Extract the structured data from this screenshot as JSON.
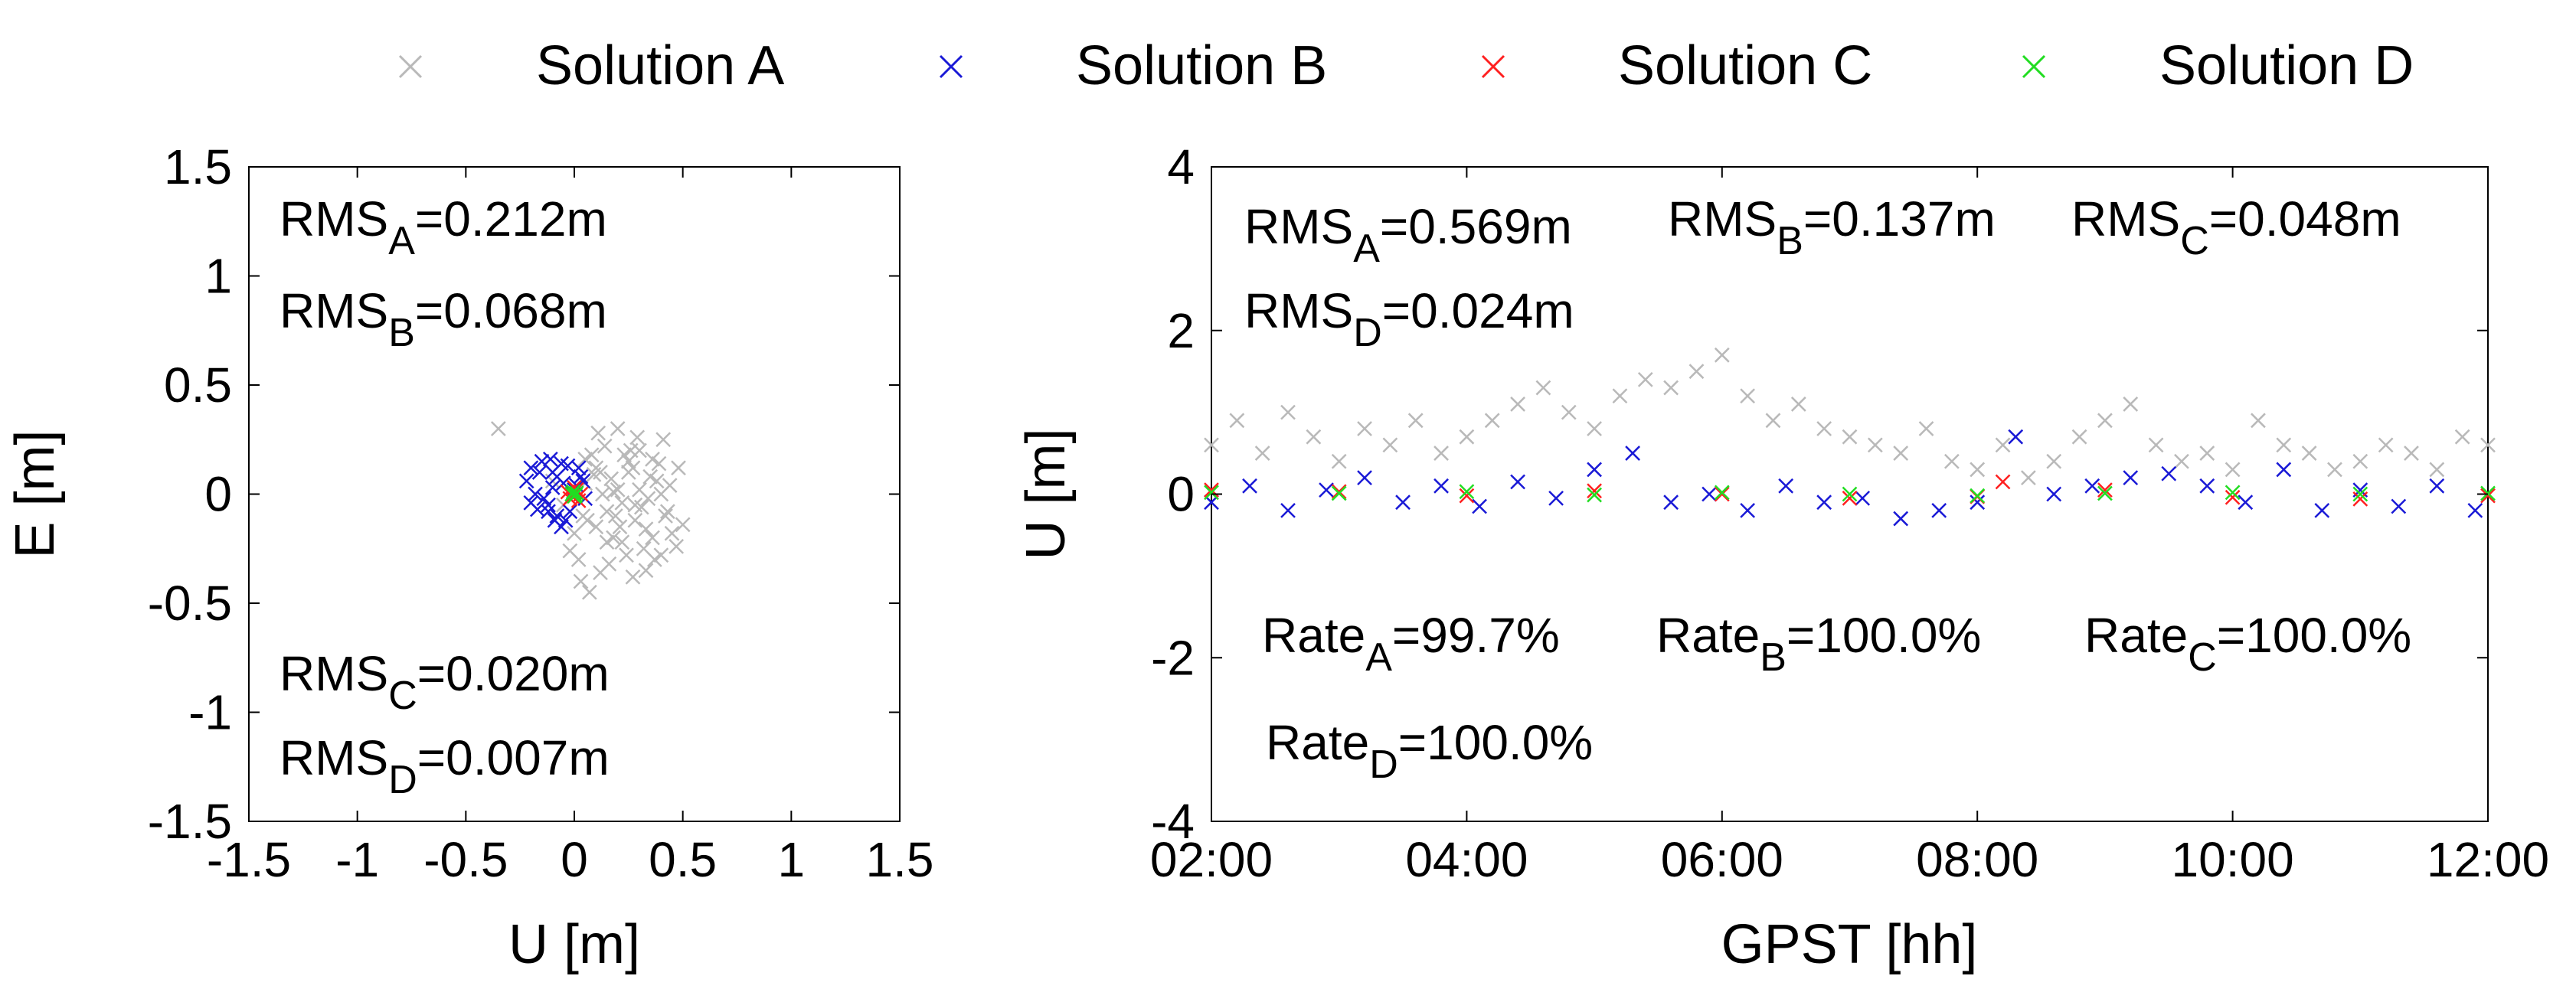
{
  "legend": {
    "items": [
      {
        "label": "Solution A",
        "color": "#b9b9b9",
        "marker": "x"
      },
      {
        "label": "Solution B",
        "color": "#1a1ad6",
        "marker": "x"
      },
      {
        "label": "Solution C",
        "color": "#ff2020",
        "marker": "x"
      },
      {
        "label": "Solution D",
        "color": "#22dd22",
        "marker": "x"
      }
    ]
  },
  "chart_data": [
    {
      "type": "scatter",
      "xlabel": "U [m]",
      "ylabel": "E [m]",
      "xlim": [
        -1.5,
        1.5
      ],
      "ylim": [
        -1.5,
        1.5
      ],
      "xticks": [
        -1.5,
        -1,
        -0.5,
        0,
        0.5,
        1,
        1.5
      ],
      "yticks": [
        -1.5,
        -1,
        -0.5,
        0,
        0.5,
        1,
        1.5
      ],
      "xtick_labels": [
        "-1.5",
        "-1",
        "-0.5",
        "0",
        "0.5",
        "1",
        "1.5"
      ],
      "ytick_labels": [
        "-1.5",
        "-1",
        "-0.5",
        "0",
        "0.5",
        "1",
        "1.5"
      ],
      "grid": false,
      "annotations": [
        {
          "base": "RMS",
          "sub": "A",
          "rest": "=0.212m"
        },
        {
          "base": "RMS",
          "sub": "B",
          "rest": "=0.068m"
        },
        {
          "base": "RMS",
          "sub": "C",
          "rest": "=0.020m"
        },
        {
          "base": "RMS",
          "sub": "D",
          "rest": "=0.007m"
        }
      ],
      "series": [
        {
          "name": "Solution A",
          "color": "#b9b9b9",
          "x": [
            0.05,
            0.12,
            0.2,
            0.28,
            0.35,
            0.42,
            0.48,
            0.1,
            0.18,
            0.25,
            0.32,
            0.4,
            0.02,
            0.08,
            0.15,
            0.22,
            0.3,
            0.38,
            0.45,
            0.06,
            0.14,
            0.24,
            0.33,
            0.41,
            -0.05,
            0.0,
            0.11,
            0.19,
            0.27,
            0.36,
            0.44,
            0.5,
            -0.1,
            -0.35,
            0.03,
            0.16,
            0.23,
            0.31,
            0.39,
            0.47,
            0.09,
            0.21,
            0.29,
            0.37,
            0.13,
            0.26,
            0.34,
            -0.02,
            0.07,
            0.17,
            0.43,
            0.12,
            0.2,
            0.28,
            0.36,
            0.04,
            0.3,
            0.22,
            0.15,
            0.33,
            0.25,
            0.1,
            0.4,
            0.18,
            0.05,
            0.27
          ],
          "y": [
            0.05,
            0.1,
            0.02,
            -0.05,
            0.08,
            -0.1,
            0.12,
            -0.15,
            -0.2,
            0.15,
            -0.25,
            0.0,
            -0.3,
            0.18,
            -0.08,
            -0.22,
            0.2,
            0.06,
            -0.18,
            -0.12,
            0.22,
            -0.28,
            -0.35,
            0.25,
            -0.05,
            -0.18,
            0.28,
            -0.1,
            0.12,
            -0.2,
            0.04,
            -0.14,
            0.06,
            0.3,
            -0.4,
            -0.32,
            0.18,
            -0.06,
            0.14,
            -0.24,
            0.09,
            -0.15,
            0.26,
            -0.3,
            0.0,
            0.2,
            -0.02,
            -0.26,
            -0.45,
            0.07,
            -0.08,
            -0.36,
            0.3,
            -0.12,
            0.16,
            -0.1,
            0.02,
            -0.04,
            -0.22,
            -0.16,
            0.1,
            0.12,
            -0.28,
            0.01,
            0.16,
            -0.38
          ]
        },
        {
          "name": "Solution B",
          "color": "#1a1ad6",
          "x": [
            -0.2,
            -0.15,
            -0.1,
            -0.05,
            0.0,
            0.05,
            -0.18,
            -0.12,
            -0.08,
            -0.02,
            0.03,
            -0.22,
            -0.16,
            -0.06,
            0.02,
            -0.14,
            -0.04,
            -0.1,
            -0.2,
            -0.08,
            0.04,
            -0.12,
            -0.03,
            -0.17,
            -0.09,
            0.01,
            -0.11,
            -0.06
          ],
          "y": [
            0.12,
            0.15,
            0.1,
            0.05,
            0.02,
            -0.02,
            0.0,
            -0.05,
            -0.1,
            -0.08,
            0.08,
            0.06,
            0.1,
            0.14,
            0.12,
            -0.02,
            -0.12,
            0.03,
            -0.04,
            0.08,
            0.06,
            -0.08,
            0.13,
            -0.07,
            -0.12,
            0.04,
            0.16,
            -0.15
          ]
        },
        {
          "name": "Solution C",
          "color": "#ff2020",
          "x": [
            -0.03,
            0.0,
            0.03,
            -0.02,
            0.02,
            0.01,
            -0.01
          ],
          "y": [
            0.01,
            0.03,
            0.0,
            -0.02,
            -0.03,
            0.02,
            -0.01
          ]
        },
        {
          "name": "Solution D",
          "color": "#22dd22",
          "x": [
            -0.01,
            0.01,
            0.0,
            0.005,
            -0.005
          ],
          "y": [
            0.0,
            0.005,
            -0.01,
            -0.005,
            0.01
          ]
        }
      ]
    },
    {
      "type": "scatter",
      "xlabel": "GPST [hh]",
      "ylabel": "U [m]",
      "xlim": [
        2,
        12
      ],
      "ylim": [
        -4,
        4
      ],
      "xticks": [
        2,
        4,
        6,
        8,
        10,
        12
      ],
      "yticks": [
        -4,
        -2,
        0,
        2,
        4
      ],
      "xtick_labels": [
        "02:00",
        "04:00",
        "06:00",
        "08:00",
        "10:00",
        "12:00"
      ],
      "ytick_labels": [
        "-4",
        "-2",
        "0",
        "2",
        "4"
      ],
      "grid": false,
      "annotations": [
        {
          "base": "RMS",
          "sub": "A",
          "rest": "=0.569m"
        },
        {
          "base": "RMS",
          "sub": "B",
          "rest": "=0.137m"
        },
        {
          "base": "RMS",
          "sub": "C",
          "rest": "=0.048m"
        },
        {
          "base": "RMS",
          "sub": "D",
          "rest": "=0.024m"
        },
        {
          "base": "Rate",
          "sub": "A",
          "rest": "=99.7%"
        },
        {
          "base": "Rate",
          "sub": "B",
          "rest": "=100.0%"
        },
        {
          "base": "Rate",
          "sub": "C",
          "rest": "=100.0%"
        },
        {
          "base": "Rate",
          "sub": "D",
          "rest": "=100.0%"
        }
      ],
      "series": [
        {
          "name": "Solution A",
          "color": "#b9b9b9",
          "x": [
            2.0,
            2.2,
            2.4,
            2.6,
            2.8,
            3.0,
            3.2,
            3.4,
            3.6,
            3.8,
            4.0,
            4.2,
            4.4,
            4.6,
            4.8,
            5.0,
            5.2,
            5.4,
            5.6,
            5.8,
            6.0,
            6.2,
            6.4,
            6.6,
            6.8,
            7.0,
            7.2,
            7.4,
            7.6,
            7.8,
            8.0,
            8.2,
            8.4,
            8.6,
            8.8,
            9.0,
            9.2,
            9.4,
            9.6,
            9.8,
            10.0,
            10.2,
            10.4,
            10.6,
            10.8,
            11.0,
            11.2,
            11.4,
            11.6,
            11.8,
            12.0
          ],
          "y": [
            0.6,
            0.9,
            0.5,
            1.0,
            0.7,
            0.4,
            0.8,
            0.6,
            0.9,
            0.5,
            0.7,
            0.9,
            1.1,
            1.3,
            1.0,
            0.8,
            1.2,
            1.4,
            1.3,
            1.5,
            1.7,
            1.2,
            0.9,
            1.1,
            0.8,
            0.7,
            0.6,
            0.5,
            0.8,
            0.4,
            0.3,
            0.6,
            0.2,
            0.4,
            0.7,
            0.9,
            1.1,
            0.6,
            0.4,
            0.5,
            0.3,
            0.9,
            0.6,
            0.5,
            0.3,
            0.4,
            0.6,
            0.5,
            0.3,
            0.7,
            0.6
          ]
        },
        {
          "name": "Solution B",
          "color": "#1a1ad6",
          "x": [
            2.0,
            2.3,
            2.6,
            2.9,
            3.2,
            3.5,
            3.8,
            4.1,
            4.4,
            4.7,
            5.0,
            5.3,
            5.6,
            5.9,
            6.2,
            6.5,
            6.8,
            7.1,
            7.4,
            7.7,
            8.0,
            8.3,
            8.6,
            8.9,
            9.2,
            9.5,
            9.8,
            10.1,
            10.4,
            10.7,
            11.0,
            11.3,
            11.6,
            11.9
          ],
          "y": [
            -0.1,
            0.1,
            -0.2,
            0.05,
            0.2,
            -0.1,
            0.1,
            -0.15,
            0.15,
            -0.05,
            0.3,
            0.5,
            -0.1,
            0.0,
            -0.2,
            0.1,
            -0.1,
            -0.05,
            -0.3,
            -0.2,
            -0.1,
            0.7,
            0.0,
            0.1,
            0.2,
            0.25,
            0.1,
            -0.1,
            0.3,
            -0.2,
            0.05,
            -0.15,
            0.1,
            -0.2
          ]
        },
        {
          "name": "Solution C",
          "color": "#ff2020",
          "x": [
            2.0,
            3.0,
            4.0,
            5.0,
            6.0,
            7.0,
            8.0,
            8.2,
            9.0,
            10.0,
            11.0,
            12.0
          ],
          "y": [
            0.05,
            0.03,
            -0.02,
            0.04,
            0.0,
            -0.05,
            -0.03,
            0.15,
            0.05,
            -0.04,
            -0.06,
            -0.02
          ]
        },
        {
          "name": "Solution D",
          "color": "#22dd22",
          "x": [
            2.0,
            3.0,
            4.0,
            5.0,
            6.0,
            7.0,
            8.0,
            9.0,
            10.0,
            11.0,
            12.0
          ],
          "y": [
            0.02,
            0.01,
            0.03,
            -0.01,
            0.02,
            0.0,
            -0.02,
            0.01,
            0.02,
            0.0,
            0.01
          ]
        }
      ]
    }
  ]
}
